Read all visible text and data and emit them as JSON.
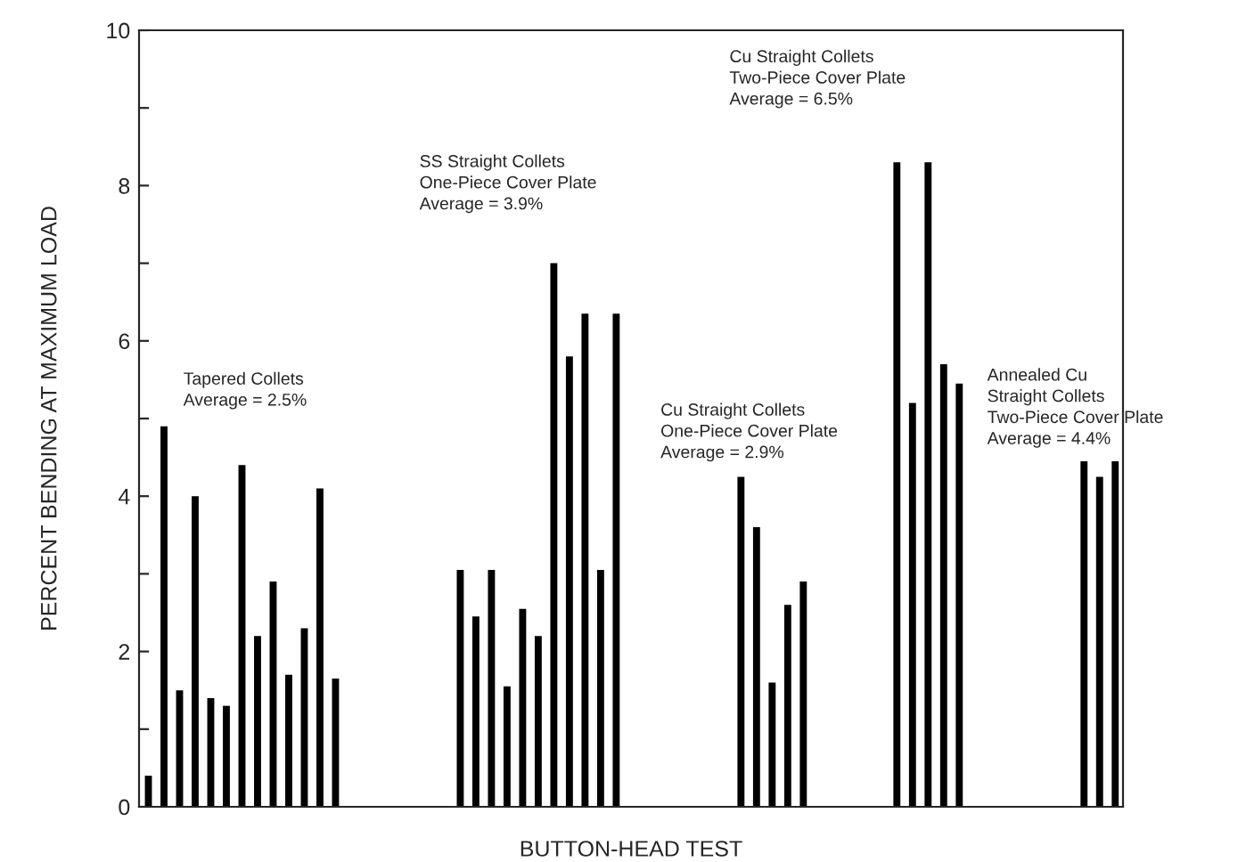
{
  "chart_data": {
    "type": "bar",
    "xlabel": "BUTTON-HEAD TEST",
    "ylabel": "PERCENT BENDING AT MAXIMUM LOAD",
    "categories": [
      null,
      null,
      null,
      null,
      null,
      null,
      null,
      null,
      null,
      null,
      null,
      null,
      null,
      null,
      null,
      null,
      null,
      null,
      null,
      null,
      null,
      null,
      null,
      null,
      null,
      null,
      null,
      null,
      null,
      null,
      null,
      null,
      null,
      null,
      null,
      null,
      null,
      null,
      null,
      null,
      null,
      null,
      null,
      null,
      null,
      null,
      null,
      null,
      null,
      null,
      null,
      null,
      null,
      null,
      null,
      null,
      null,
      null,
      null,
      null,
      null,
      null,
      null
    ],
    "values": [
      0.4,
      4.9,
      1.5,
      4.0,
      1.4,
      1.3,
      4.4,
      2.2,
      2.9,
      1.7,
      2.3,
      4.1,
      1.65,
      null,
      null,
      null,
      null,
      null,
      null,
      null,
      3.05,
      2.45,
      3.05,
      1.55,
      2.55,
      2.2,
      7.0,
      5.8,
      6.35,
      3.05,
      6.35,
      null,
      null,
      null,
      null,
      null,
      null,
      null,
      4.25,
      3.6,
      1.6,
      2.6,
      2.9,
      null,
      null,
      null,
      null,
      null,
      8.3,
      5.2,
      8.3,
      5.7,
      5.45,
      null,
      null,
      null,
      null,
      null,
      null,
      null,
      4.45,
      4.25,
      4.45
    ],
    "color": "#000000",
    "ylim": [
      0,
      10
    ],
    "yticks": [
      0,
      {
        "value": 1,
        "label": null
      },
      2,
      {
        "value": 3,
        "label": null
      },
      4,
      {
        "value": 5,
        "label": null
      },
      6,
      {
        "value": 7,
        "label": null
      },
      8,
      {
        "value": 9,
        "label": null
      },
      10
    ],
    "grid": false,
    "annotations": [
      "Tapered Collets\nAverage = 2.5%",
      "SS Straight Collets\nOne-Piece Cover Plate\nAverage = 3.9%",
      "Cu Straight Collets\nOne-Piece Cover Plate\nAverage = 2.9%",
      "Cu Straight Collets\nTwo-Piece Cover Plate\nAverage = 6.5%",
      "Annealed Cu\nStraight Collets\nTwo-Piece Cover Plate\nAverage = 4.4%"
    ]
  }
}
